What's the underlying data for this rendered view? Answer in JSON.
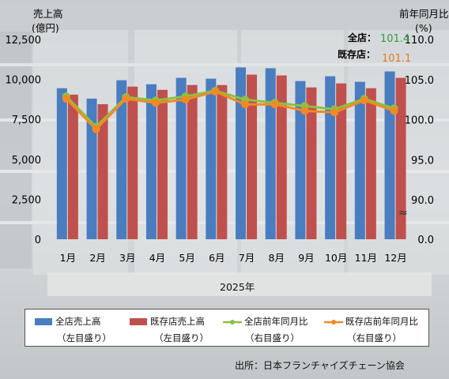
{
  "left_axis": {
    "title_line1": "売上高",
    "title_line2": "(億円)",
    "ticks": [
      "12,500",
      "10,000",
      "7,500",
      "5,000",
      "2,500",
      "0"
    ],
    "tick_values": [
      12500,
      10000,
      7500,
      5000,
      2500,
      0
    ]
  },
  "right_axis": {
    "title_line1": "前年同月比",
    "title_line2": "(%)",
    "ticks": [
      "110.0",
      "105.0",
      "100.0",
      "95.0",
      "90.0",
      "0.0"
    ],
    "break_symbol": "≈"
  },
  "callouts": {
    "all_label": "全店：",
    "all_value": "101.4",
    "all_color": "#2e9e3e",
    "existing_label": "既存店：",
    "existing_value": "101.1",
    "existing_color": "#e07b1f"
  },
  "year_label": "2025年",
  "legend": {
    "items": [
      {
        "label": "全店売上高",
        "sub": "（左目盛り）"
      },
      {
        "label": "既存店売上高",
        "sub": "（左目盛り）"
      },
      {
        "label": "全店前年同月比",
        "sub": "（右目盛り）"
      },
      {
        "label": "既存店前年同月比",
        "sub": "（右目盛り）"
      }
    ]
  },
  "source": "出所：日本フランチャイズチェーン協会",
  "colors": {
    "bar_all": "#4a7cc0",
    "bar_existing": "#c0504d",
    "line_all": "#8cc043",
    "line_existing": "#f08a24"
  },
  "chart_data": {
    "type": "bar",
    "categories": [
      "1月",
      "2月",
      "3月",
      "4月",
      "5月",
      "6月",
      "7月",
      "8月",
      "9月",
      "10月",
      "11月",
      "12月"
    ],
    "series": [
      {
        "name": "全店売上高",
        "axis": "left",
        "type": "bar",
        "values": [
          9450,
          8800,
          9950,
          9700,
          10100,
          10050,
          10750,
          10700,
          9900,
          10200,
          9850,
          10500
        ]
      },
      {
        "name": "既存店売上高",
        "axis": "left",
        "type": "bar",
        "values": [
          9050,
          8450,
          9550,
          9350,
          9650,
          9650,
          10300,
          10250,
          9500,
          9750,
          9450,
          10100
        ]
      },
      {
        "name": "全店前年同月比",
        "axis": "right",
        "type": "line",
        "values": [
          102.9,
          99.1,
          102.8,
          102.4,
          102.9,
          103.6,
          102.5,
          102.1,
          101.7,
          101.3,
          102.6,
          101.4
        ]
      },
      {
        "name": "既存店前年同月比",
        "axis": "right",
        "type": "line",
        "values": [
          102.6,
          98.8,
          102.6,
          102.1,
          102.5,
          103.5,
          101.9,
          101.9,
          101.1,
          100.9,
          102.4,
          101.1
        ]
      }
    ],
    "xlabel": "2025年",
    "ylabel_left": "売上高(億円)",
    "ylabel_right": "前年同月比(%)",
    "ylim_left": [
      0,
      12500
    ],
    "ylim_right_display": [
      90.0,
      110.0
    ],
    "right_axis_break": true,
    "grid": false,
    "legend_position": "bottom"
  }
}
